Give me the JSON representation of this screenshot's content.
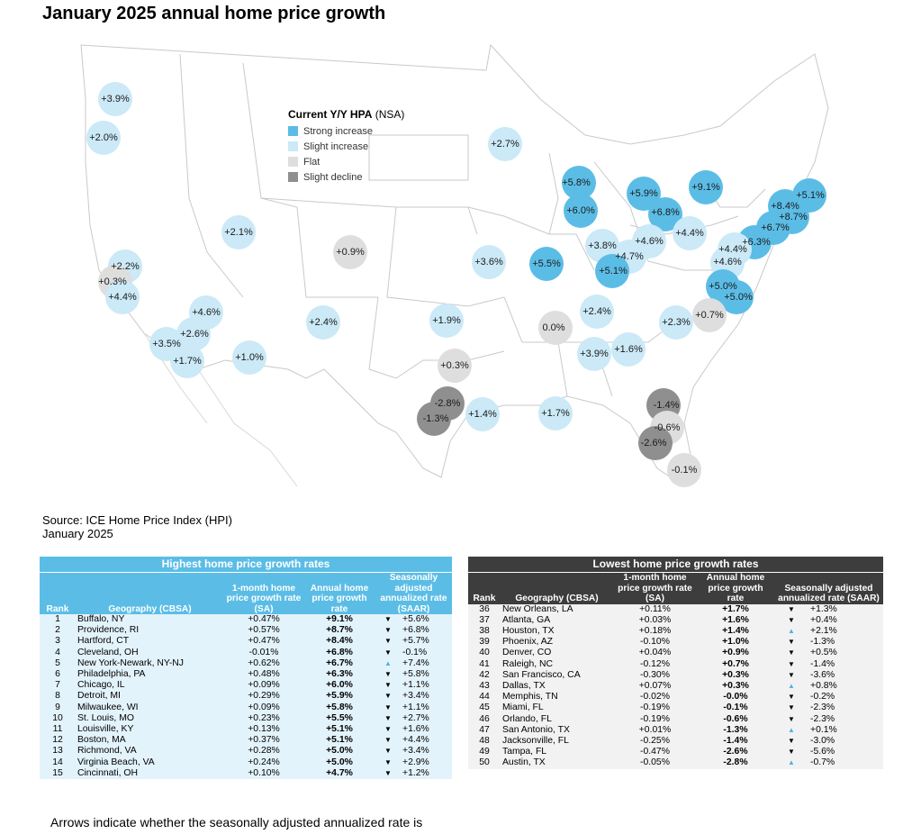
{
  "title": "January 2025 annual home price growth",
  "legend": {
    "title": "Current Y/Y HPA",
    "title_suffix": "(NSA)",
    "items": [
      {
        "label": "Strong increase",
        "color": "#5bbde6"
      },
      {
        "label": "Slight increase",
        "color": "#cbe9f7"
      },
      {
        "label": "Flat",
        "color": "#dedede"
      },
      {
        "label": "Slight decline",
        "color": "#8f8f8f"
      }
    ]
  },
  "chart_data": {
    "type": "bubble-map",
    "title": "January 2025 annual home price growth",
    "metric": "Current Y/Y HPA (NSA)",
    "labels": [
      "+3.9%",
      "+2.0%",
      "+2.7%",
      "+5.8%",
      "+6.0%",
      "+5.9%",
      "+6.8%",
      "+9.1%",
      "+5.1%",
      "+8.4%",
      "+8.7%",
      "+6.7%",
      "+6.3%",
      "+4.4%",
      "+4.6%",
      "+5.0%",
      "+5.0%",
      "+4.4%",
      "+4.6%",
      "+4.7%",
      "+3.8%",
      "+5.1%",
      "+5.5%",
      "+3.6%",
      "+0.9%",
      "+2.1%",
      "+2.2%",
      "+0.3%",
      "+4.4%",
      "+4.6%",
      "+2.6%",
      "+3.5%",
      "+1.7%",
      "+1.0%",
      "+2.4%",
      "+1.9%",
      "+0.3%",
      "-2.8%",
      "-1.3%",
      "+1.4%",
      "+1.7%",
      "0.0%",
      "+2.4%",
      "+2.3%",
      "+0.7%",
      "+3.9%",
      "+1.6%",
      "-1.4%",
      "-0.6%",
      "-2.6%",
      "-0.1%"
    ],
    "categories": [
      "Strong increase",
      "Slight increase",
      "Flat",
      "Slight decline"
    ]
  },
  "source": {
    "line1": "Source: ICE Home Price Index (HPI)",
    "line2": "January 2025"
  },
  "headers": {
    "rank": "Rank",
    "geo": "Geography (CBSA)",
    "m1": "1-month home price growth rate (SA)",
    "annual": "Annual home price growth rate",
    "saar": "Seasonally adjusted annualized rate (SAAR)"
  },
  "highest": {
    "title": "Highest home price growth rates",
    "rows": [
      {
        "rank": "1",
        "geo": "Buffalo, NY",
        "m1": "+0.47%",
        "annual": "+9.1%",
        "dir": "down",
        "saar": "+5.6%"
      },
      {
        "rank": "2",
        "geo": "Providence, RI",
        "m1": "+0.57%",
        "annual": "+8.7%",
        "dir": "down",
        "saar": "+6.8%"
      },
      {
        "rank": "3",
        "geo": "Hartford, CT",
        "m1": "+0.47%",
        "annual": "+8.4%",
        "dir": "down",
        "saar": "+5.7%"
      },
      {
        "rank": "4",
        "geo": "Cleveland, OH",
        "m1": "-0.01%",
        "annual": "+6.8%",
        "dir": "down",
        "saar": "-0.1%"
      },
      {
        "rank": "5",
        "geo": "New York-Newark, NY-NJ",
        "m1": "+0.62%",
        "annual": "+6.7%",
        "dir": "up",
        "saar": "+7.4%"
      },
      {
        "rank": "6",
        "geo": "Philadelphia, PA",
        "m1": "+0.48%",
        "annual": "+6.3%",
        "dir": "down",
        "saar": "+5.8%"
      },
      {
        "rank": "7",
        "geo": "Chicago, IL",
        "m1": "+0.09%",
        "annual": "+6.0%",
        "dir": "down",
        "saar": "+1.1%"
      },
      {
        "rank": "8",
        "geo": "Detroit, MI",
        "m1": "+0.29%",
        "annual": "+5.9%",
        "dir": "down",
        "saar": "+3.4%"
      },
      {
        "rank": "9",
        "geo": "Milwaukee, WI",
        "m1": "+0.09%",
        "annual": "+5.8%",
        "dir": "down",
        "saar": "+1.1%"
      },
      {
        "rank": "10",
        "geo": "St. Louis, MO",
        "m1": "+0.23%",
        "annual": "+5.5%",
        "dir": "down",
        "saar": "+2.7%"
      },
      {
        "rank": "11",
        "geo": "Louisville, KY",
        "m1": "+0.13%",
        "annual": "+5.1%",
        "dir": "down",
        "saar": "+1.6%"
      },
      {
        "rank": "12",
        "geo": "Boston, MA",
        "m1": "+0.37%",
        "annual": "+5.1%",
        "dir": "down",
        "saar": "+4.4%"
      },
      {
        "rank": "13",
        "geo": "Richmond, VA",
        "m1": "+0.28%",
        "annual": "+5.0%",
        "dir": "down",
        "saar": "+3.4%"
      },
      {
        "rank": "14",
        "geo": "Virginia Beach, VA",
        "m1": "+0.24%",
        "annual": "+5.0%",
        "dir": "down",
        "saar": "+2.9%"
      },
      {
        "rank": "15",
        "geo": "Cincinnati, OH",
        "m1": "+0.10%",
        "annual": "+4.7%",
        "dir": "down",
        "saar": "+1.2%"
      }
    ]
  },
  "lowest": {
    "title": "Lowest home price growth rates",
    "rows": [
      {
        "rank": "36",
        "geo": "New Orleans, LA",
        "m1": "+0.11%",
        "annual": "+1.7%",
        "dir": "down",
        "saar": "+1.3%"
      },
      {
        "rank": "37",
        "geo": "Atlanta, GA",
        "m1": "+0.03%",
        "annual": "+1.6%",
        "dir": "down",
        "saar": "+0.4%"
      },
      {
        "rank": "38",
        "geo": "Houston, TX",
        "m1": "+0.18%",
        "annual": "+1.4%",
        "dir": "up",
        "saar": "+2.1%"
      },
      {
        "rank": "39",
        "geo": "Phoenix, AZ",
        "m1": "-0.10%",
        "annual": "+1.0%",
        "dir": "down",
        "saar": "-1.3%"
      },
      {
        "rank": "40",
        "geo": "Denver, CO",
        "m1": "+0.04%",
        "annual": "+0.9%",
        "dir": "down",
        "saar": "+0.5%"
      },
      {
        "rank": "41",
        "geo": "Raleigh, NC",
        "m1": "-0.12%",
        "annual": "+0.7%",
        "dir": "down",
        "saar": "-1.4%"
      },
      {
        "rank": "42",
        "geo": "San Francisco, CA",
        "m1": "-0.30%",
        "annual": "+0.3%",
        "dir": "down",
        "saar": "-3.6%"
      },
      {
        "rank": "43",
        "geo": "Dallas, TX",
        "m1": "+0.07%",
        "annual": "+0.3%",
        "dir": "up",
        "saar": "+0.8%"
      },
      {
        "rank": "44",
        "geo": "Memphis, TN",
        "m1": "-0.02%",
        "annual": "-0.0%",
        "dir": "down",
        "saar": "-0.2%"
      },
      {
        "rank": "45",
        "geo": "Miami, FL",
        "m1": "-0.19%",
        "annual": "-0.1%",
        "dir": "down",
        "saar": "-2.3%"
      },
      {
        "rank": "46",
        "geo": "Orlando, FL",
        "m1": "-0.19%",
        "annual": "-0.6%",
        "dir": "down",
        "saar": "-2.3%"
      },
      {
        "rank": "47",
        "geo": "San Antonio, TX",
        "m1": "+0.01%",
        "annual": "-1.3%",
        "dir": "up",
        "saar": "+0.1%"
      },
      {
        "rank": "48",
        "geo": "Jacksonville, FL",
        "m1": "-0.25%",
        "annual": "-1.4%",
        "dir": "down",
        "saar": "-3.0%"
      },
      {
        "rank": "49",
        "geo": "Tampa, FL",
        "m1": "-0.47%",
        "annual": "-2.6%",
        "dir": "down",
        "saar": "-5.6%"
      },
      {
        "rank": "50",
        "geo": "Austin, TX",
        "m1": "-0.05%",
        "annual": "-2.8%",
        "dir": "up",
        "saar": "-0.7%"
      }
    ]
  },
  "arrows": {
    "up": "▲",
    "down": "▼",
    "up_color": "#4fb3e0",
    "down_color": "#000000"
  },
  "colors": {
    "highest_header": "#5bbde6",
    "lowest_header": "#3d3d3d",
    "highest_body": "#e3f3fb",
    "lowest_body": "#f2f2f2"
  },
  "note": "Arrows indicate whether the seasonally adjusted annualized rate is"
}
